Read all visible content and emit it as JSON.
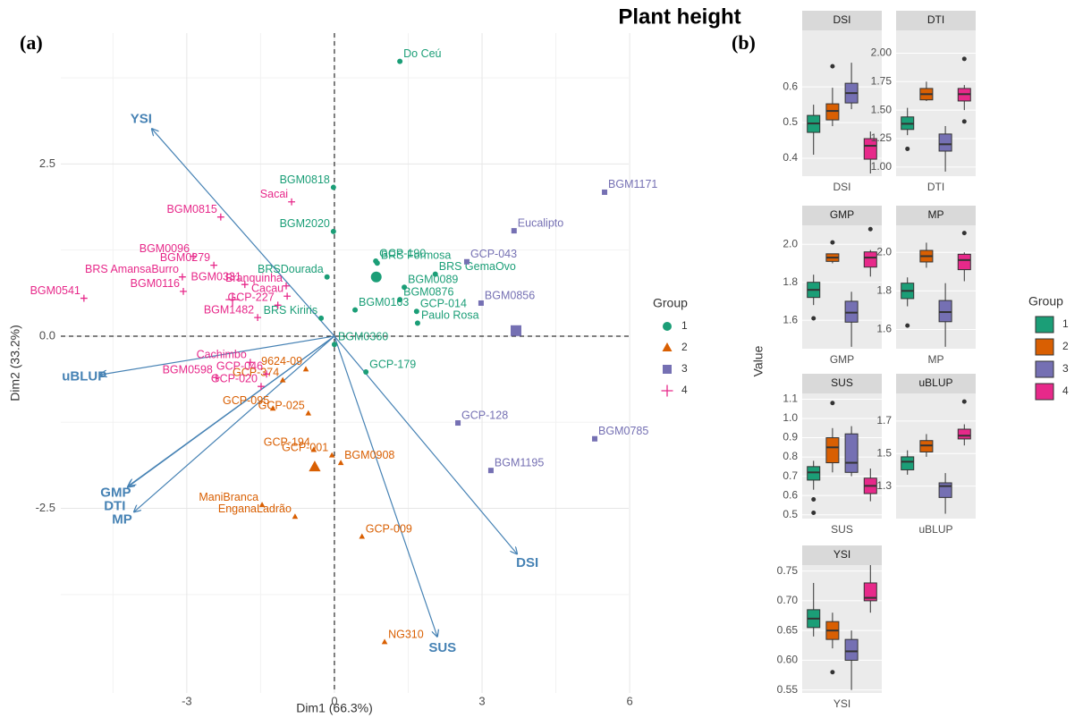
{
  "title": "Plant height",
  "chart_data": [
    {
      "type": "scatter",
      "panel_label": "(a)",
      "x_label": "Dim1 (66.3%)",
      "y_label": "Dim2 (33.2%)",
      "xlim": [
        -5.56,
        5.98
      ],
      "ylim": [
        -5.18,
        4.4
      ],
      "xticks": [
        -3,
        0,
        3,
        6
      ],
      "yticks": [
        -2.5,
        {
          "value": 0,
          "label": "0.0"
        },
        2.5
      ],
      "x_minor_ticks": [
        -4.5,
        -1.5,
        1.5,
        4.5
      ],
      "y_minor_ticks": [
        -3.75,
        -1.25,
        1.25,
        3.75
      ],
      "grid": true,
      "zero_lines": true,
      "legend_title": "Group",
      "legend_position": "right",
      "series": [
        {
          "name": "1",
          "color": "#1b9e77",
          "shape": "circle",
          "centroid_x": 0.85,
          "centroid_y": 0.86,
          "labels": [
            "Do Ceú",
            "BGM0818",
            "BGM2020",
            "GCP-190",
            "BRS Formosa",
            "BRSDourada",
            "BRS GemaOvo",
            "BGM0089",
            "BGM0876",
            "GCP-014",
            "Paulo Rosa",
            "BGM0163",
            "BRS Kiriris",
            "BGM0360",
            "GCP-179"
          ],
          "x": [
            1.33,
            -0.02,
            -0.02,
            0.84,
            0.87,
            -0.15,
            2.05,
            1.42,
            1.33,
            1.67,
            1.69,
            0.42,
            -0.27,
            0,
            0.64
          ],
          "y": [
            3.99,
            2.16,
            1.52,
            1.09,
            1.06,
            0.86,
            0.9,
            0.71,
            0.53,
            0.36,
            0.19,
            0.38,
            0.26,
            -0.12,
            -0.52
          ]
        },
        {
          "name": "2",
          "color": "#d95f02",
          "shape": "triangle",
          "centroid_x": -0.4,
          "centroid_y": -1.9,
          "labels": [
            "9624-09",
            "GCP-374",
            "GCP-095",
            "GCP-025",
            "GCP-194",
            "GCP-001",
            "BGM0908",
            "ManiBranca",
            "EnganaLadrão",
            "GCP-009",
            "NG310"
          ],
          "x": [
            -0.58,
            -1.05,
            -1.25,
            -0.53,
            -0.42,
            -0.05,
            0.13,
            -1.47,
            -0.8,
            0.56,
            1.02
          ],
          "y": [
            -0.48,
            -0.64,
            -1.05,
            -1.12,
            -1.65,
            -1.73,
            -1.84,
            -2.45,
            -2.62,
            -2.91,
            -4.44
          ]
        },
        {
          "name": "3",
          "color": "#7570b3",
          "shape": "square",
          "centroid_x": 3.69,
          "centroid_y": 0.08,
          "labels": [
            "BGM1171",
            "Eucalipto",
            "GCP-043",
            "BGM0856",
            "GCP-128",
            "BGM0785",
            "BGM1195"
          ],
          "x": [
            5.49,
            3.65,
            2.69,
            2.98,
            2.51,
            5.29,
            3.18
          ],
          "y": [
            2.09,
            1.53,
            1.08,
            0.48,
            -1.26,
            -1.49,
            -1.95
          ]
        },
        {
          "name": "4",
          "color": "#e7298a",
          "shape": "plus",
          "centroid_x": -2.07,
          "centroid_y": 0.53,
          "labels": [
            "Sacai",
            "BGM0815",
            "BGM0096",
            "BGM0279",
            "BRS AmansaBurro",
            "BGM0331",
            "Branquinha",
            "BGM0541",
            "BGM0116",
            "Cacau",
            "GCP-227",
            "BGM1482",
            "Cachimbo",
            "GCP-046",
            "BGM0598",
            "GCP-020"
          ],
          "x": [
            -0.87,
            -2.31,
            -2.87,
            -2.45,
            -3.09,
            -1.82,
            -0.98,
            -5.09,
            -3.07,
            -0.96,
            -1.15,
            -1.56,
            -1.71,
            -1.38,
            -2.4,
            -1.49
          ],
          "y": [
            1.95,
            1.73,
            1.16,
            1.03,
            0.86,
            0.75,
            0.73,
            0.55,
            0.65,
            0.58,
            0.45,
            0.27,
            -0.38,
            -0.55,
            -0.6,
            -0.73
          ]
        }
      ],
      "vectors": {
        "color": "#4682b4",
        "names": [
          "YSI",
          "uBLUP",
          "GMP",
          "DTI",
          "MP",
          "DSI",
          "SUS"
        ],
        "x": [
          -3.71,
          -4.76,
          -4.18,
          -4.2,
          -4.07,
          3.71,
          2.09
        ],
        "y": [
          3.01,
          -0.56,
          -2.17,
          -2.19,
          -2.55,
          -3.16,
          -4.36
        ]
      }
    },
    {
      "type": "box",
      "panel_label": "(b)",
      "y_label": "Value",
      "legend_title": "Group",
      "legend_position": "right",
      "groups": [
        "1",
        "2",
        "3",
        "4"
      ],
      "colors": [
        "#1b9e77",
        "#d95f02",
        "#7570b3",
        "#e7298a"
      ],
      "facets": [
        {
          "name": "DSI",
          "ylim": [
            0.35,
            0.758
          ],
          "yticks": [
            0.4,
            0.5,
            0.6
          ],
          "boxes": [
            {
              "low": 0.41,
              "q1": 0.4725,
              "median": 0.4975,
              "q3": 0.52,
              "high": 0.55,
              "outliers": []
            },
            {
              "low": 0.49,
              "q1": 0.5075,
              "median": 0.5325,
              "q3": 0.5525,
              "high": 0.5975,
              "outliers": [
                0.6575
              ]
            },
            {
              "low": 0.5375,
              "q1": 0.555,
              "median": 0.5825,
              "q3": 0.61,
              "high": 0.6675,
              "outliers": []
            },
            {
              "low": 0.3575,
              "q1": 0.3975,
              "median": 0.435,
              "q3": 0.455,
              "high": 0.475,
              "outliers": []
            }
          ]
        },
        {
          "name": "DTI",
          "ylim": [
            0.92,
            2.2
          ],
          "yticks": [
            {
              "value": 1,
              "label": "1.00"
            },
            1.25,
            {
              "value": 1.5,
              "label": "1.50"
            },
            1.75,
            {
              "value": 2,
              "label": "2.00"
            }
          ],
          "boxes": [
            {
              "low": 1.28,
              "q1": 1.33,
              "median": 1.38,
              "q3": 1.44,
              "high": 1.52,
              "outliers": [
                1.16
              ]
            },
            {
              "low": 1.58,
              "q1": 1.59,
              "median": 1.64,
              "q3": 1.69,
              "high": 1.75,
              "outliers": []
            },
            {
              "low": 0.96,
              "q1": 1.14,
              "median": 1.2,
              "q3": 1.29,
              "high": 1.36,
              "outliers": []
            },
            {
              "low": 1.5,
              "q1": 1.58,
              "median": 1.64,
              "q3": 1.69,
              "high": 1.72,
              "outliers": [
                1.95,
                1.4
              ]
            }
          ]
        },
        {
          "name": "GMP",
          "ylim": [
            1.45,
            2.1
          ],
          "yticks": [
            1.6,
            1.8,
            {
              "value": 2,
              "label": "2.0"
            }
          ],
          "boxes": [
            {
              "low": 1.68,
              "q1": 1.72,
              "median": 1.76,
              "q3": 1.8,
              "high": 1.84,
              "outliers": [
                1.61
              ]
            },
            {
              "low": 1.9,
              "q1": 1.91,
              "median": 1.93,
              "q3": 1.95,
              "high": 1.95,
              "outliers": [
                2.01
              ]
            },
            {
              "low": 1.46,
              "q1": 1.59,
              "median": 1.64,
              "q3": 1.7,
              "high": 1.75,
              "outliers": []
            },
            {
              "low": 1.83,
              "q1": 1.88,
              "median": 1.93,
              "q3": 1.96,
              "high": 1.97,
              "outliers": [
                2.08
              ]
            }
          ]
        },
        {
          "name": "MP",
          "ylim": [
            1.5,
            2.14
          ],
          "yticks": [
            1.6,
            1.8,
            {
              "value": 2,
              "label": "2.0"
            }
          ],
          "boxes": [
            {
              "low": 1.72,
              "q1": 1.76,
              "median": 1.8,
              "q3": 1.84,
              "high": 1.87,
              "outliers": [
                1.62
              ]
            },
            {
              "low": 1.92,
              "q1": 1.95,
              "median": 1.98,
              "q3": 2.01,
              "high": 2.05,
              "outliers": []
            },
            {
              "low": 1.51,
              "q1": 1.64,
              "median": 1.69,
              "q3": 1.75,
              "high": 1.84,
              "outliers": []
            },
            {
              "low": 1.85,
              "q1": 1.91,
              "median": 1.96,
              "q3": 1.99,
              "high": 2.0,
              "outliers": [
                2.1
              ]
            }
          ]
        },
        {
          "name": "SUS",
          "ylim": [
            0.48,
            1.13
          ],
          "yticks": [
            0.5,
            0.6,
            0.7,
            0.8,
            0.9,
            {
              "value": 1,
              "label": "1.0"
            },
            1.1
          ],
          "boxes": [
            {
              "low": 0.63,
              "q1": 0.68,
              "median": 0.72,
              "q3": 0.75,
              "high": 0.78,
              "outliers": [
                0.58,
                0.51
              ]
            },
            {
              "low": 0.72,
              "q1": 0.77,
              "median": 0.85,
              "q3": 0.9,
              "high": 0.95,
              "outliers": [
                1.08
              ]
            },
            {
              "low": 0.7,
              "q1": 0.72,
              "median": 0.77,
              "q3": 0.92,
              "high": 0.96,
              "outliers": []
            },
            {
              "low": 0.57,
              "q1": 0.61,
              "median": 0.65,
              "q3": 0.69,
              "high": 0.74,
              "outliers": []
            }
          ]
        },
        {
          "name": "uBLUP",
          "ylim": [
            1.1,
            1.87
          ],
          "yticks": [
            1.3,
            1.5,
            1.7
          ],
          "boxes": [
            {
              "low": 1.37,
              "q1": 1.4,
              "median": 1.45,
              "q3": 1.48,
              "high": 1.52,
              "outliers": []
            },
            {
              "low": 1.48,
              "q1": 1.51,
              "median": 1.55,
              "q3": 1.58,
              "high": 1.62,
              "outliers": []
            },
            {
              "low": 1.13,
              "q1": 1.23,
              "median": 1.3,
              "q3": 1.32,
              "high": 1.38,
              "outliers": []
            },
            {
              "low": 1.55,
              "q1": 1.59,
              "median": 1.61,
              "q3": 1.65,
              "high": 1.68,
              "outliers": [
                1.82
              ]
            }
          ]
        },
        {
          "name": "YSI",
          "ylim": [
            0.545,
            0.76
          ],
          "yticks": [
            0.55,
            {
              "value": 0.6,
              "label": "0.60"
            },
            0.65,
            {
              "value": 0.7,
              "label": "0.70"
            },
            0.75
          ],
          "boxes": [
            {
              "low": 0.64,
              "q1": 0.655,
              "median": 0.67,
              "q3": 0.685,
              "high": 0.73,
              "outliers": []
            },
            {
              "low": 0.62,
              "q1": 0.635,
              "median": 0.65,
              "q3": 0.665,
              "high": 0.68,
              "outliers": [
                0.58
              ]
            },
            {
              "low": 0.55,
              "q1": 0.6,
              "median": 0.615,
              "q3": 0.635,
              "high": 0.65,
              "outliers": []
            },
            {
              "low": 0.68,
              "q1": 0.7,
              "median": 0.705,
              "q3": 0.73,
              "high": 0.76,
              "outliers": []
            }
          ]
        }
      ]
    }
  ]
}
